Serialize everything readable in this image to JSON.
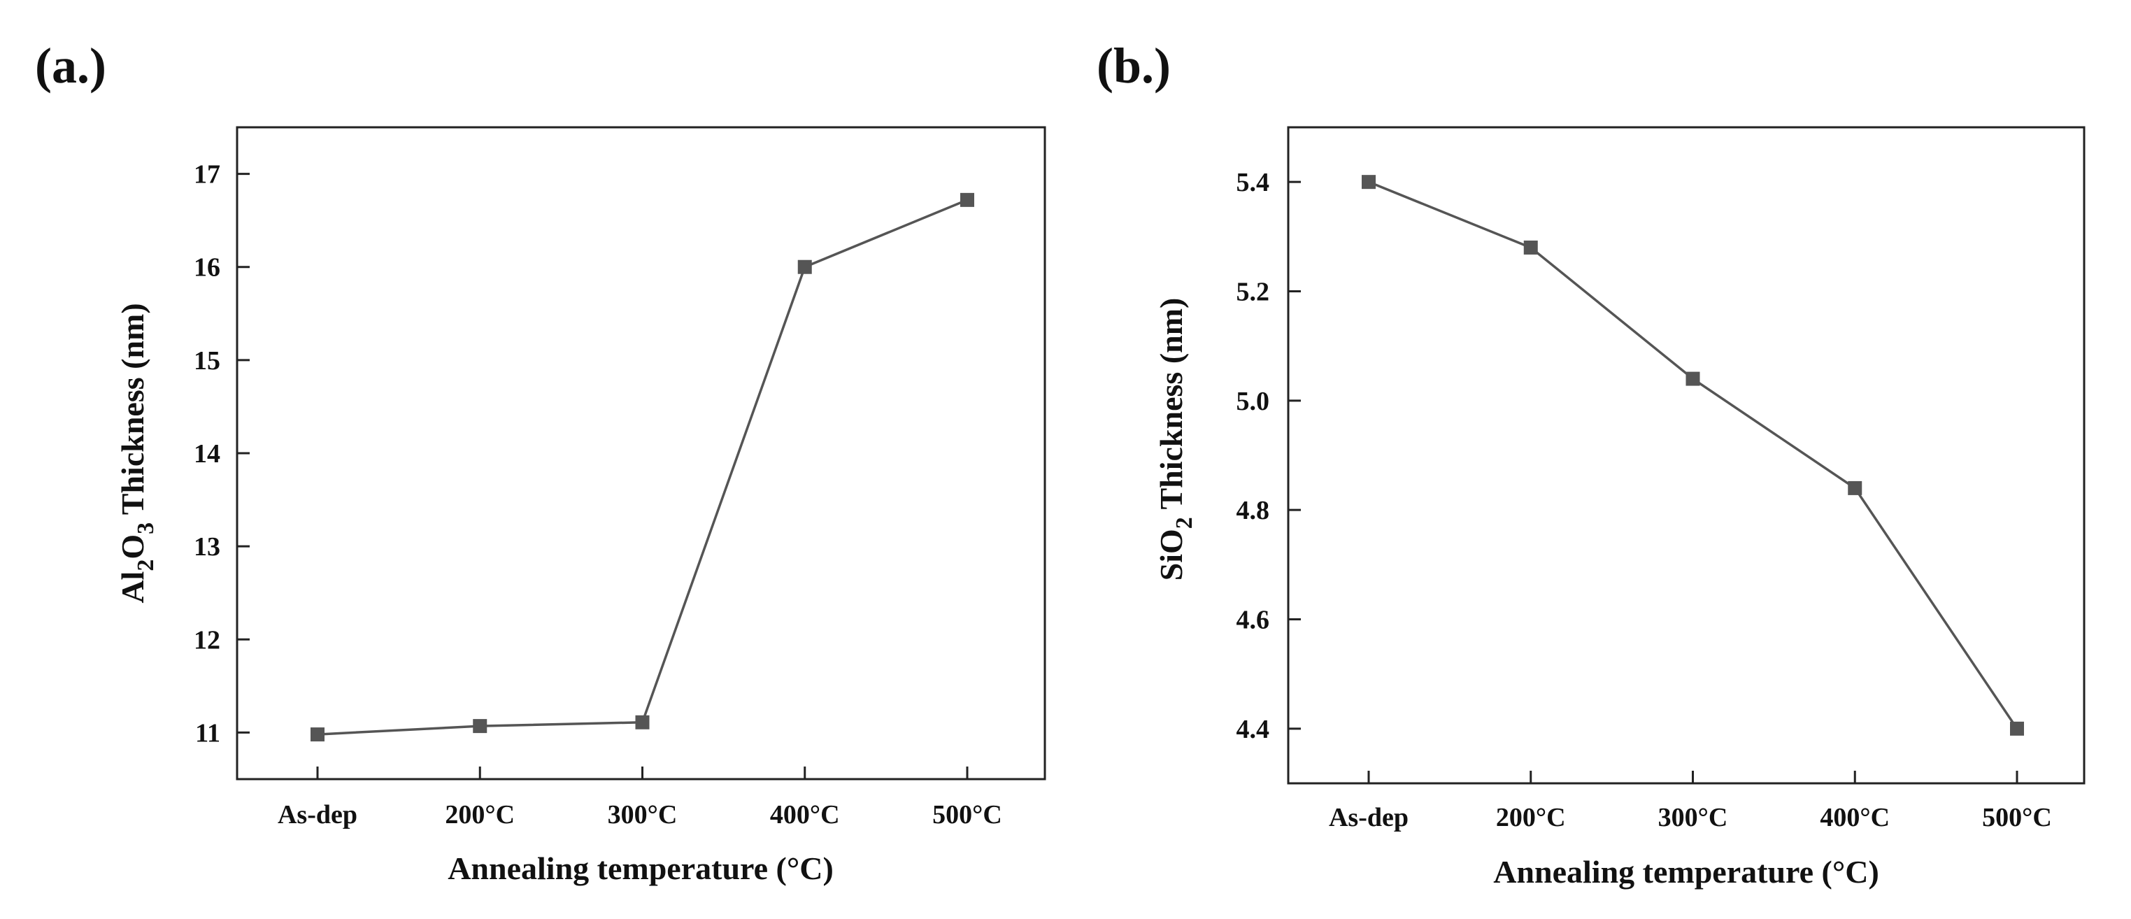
{
  "chart_data": [
    {
      "type": "line",
      "panel_label": "(a.)",
      "categories": [
        "As-dep",
        "200°C",
        "300°C",
        "400°C",
        "500°C"
      ],
      "values": [
        10.98,
        11.07,
        11.11,
        16.0,
        16.72
      ],
      "xlabel": "Annealing temperature (°C)",
      "ylabel": {
        "prefix": "Al",
        "sub1": "2",
        "mid": "O",
        "sub2": "3",
        "suffix": " Thickness (nm)"
      },
      "ylim": [
        10.5,
        17.5
      ],
      "yticks": [
        11,
        12,
        13,
        14,
        15,
        16,
        17
      ],
      "ytick_labels": [
        "11",
        "12",
        "13",
        "14",
        "15",
        "16",
        "17"
      ],
      "grid": false,
      "legend": "none",
      "marker": "square",
      "color": "#555555"
    },
    {
      "type": "line",
      "panel_label": "(b.)",
      "categories": [
        "As-dep",
        "200°C",
        "300°C",
        "400°C",
        "500°C"
      ],
      "values": [
        5.4,
        5.28,
        5.04,
        4.84,
        4.4
      ],
      "xlabel": "Annealing temperature (°C)",
      "ylabel": {
        "prefix": "SiO",
        "sub1": "2",
        "mid": "",
        "sub2": "",
        "suffix": " Thickness (nm)"
      },
      "ylim": [
        4.3,
        5.5
      ],
      "yticks": [
        4.4,
        4.6,
        4.8,
        5.0,
        5.2,
        5.4
      ],
      "ytick_labels": [
        "4.4",
        "4.6",
        "4.8",
        "5.0",
        "5.2",
        "5.4"
      ],
      "grid": false,
      "legend": "none",
      "marker": "square",
      "color": "#555555"
    }
  ]
}
